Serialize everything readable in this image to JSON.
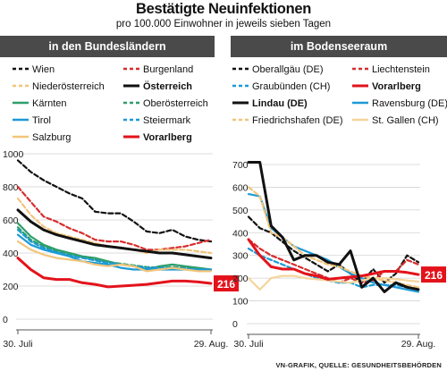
{
  "header": {
    "title": "Bestätigte Neuinfektionen",
    "subtitle": "pro 100.000 Einwohner in jeweils sieben Tagen"
  },
  "footer": {
    "source": "VN-GRAFIK, QUELLE: GESUNDHEITSBEHÖRDEN"
  },
  "chart_data": [
    {
      "type": "line",
      "title": "in den Bundesländern",
      "xlabel": "",
      "ylabel": "",
      "x_tick_labels": [
        "30. Juli",
        "29. Aug."
      ],
      "x": [
        0,
        2,
        4,
        6,
        8,
        10,
        12,
        14,
        16,
        18,
        20,
        22,
        24,
        26,
        28,
        30
      ],
      "ylim": [
        0,
        1000
      ],
      "y_ticks": [
        0,
        200,
        400,
        600,
        800,
        1000
      ],
      "grid": "horizontal",
      "legend_placement": "top",
      "end_label": {
        "text": "216",
        "series": "Vorarlberg",
        "color": "#e3131b"
      },
      "series": [
        {
          "name": "Wien",
          "color": "#111111",
          "style": "dashed",
          "bold": false,
          "values": [
            960,
            890,
            840,
            800,
            760,
            730,
            650,
            640,
            640,
            590,
            530,
            520,
            540,
            500,
            480,
            470
          ]
        },
        {
          "name": "Burgenland",
          "color": "#d62d2d",
          "style": "dashed",
          "bold": false,
          "values": [
            800,
            710,
            620,
            590,
            550,
            520,
            480,
            470,
            470,
            450,
            420,
            420,
            430,
            440,
            460,
            480
          ]
        },
        {
          "name": "Niederösterreich",
          "color": "#f2c57a",
          "style": "dashed",
          "bold": false,
          "values": [
            730,
            630,
            560,
            520,
            500,
            480,
            460,
            440,
            430,
            420,
            400,
            420,
            420,
            420,
            410,
            400
          ]
        },
        {
          "name": "Österreich",
          "color": "#111111",
          "style": "solid",
          "bold": true,
          "values": [
            660,
            590,
            540,
            510,
            490,
            470,
            450,
            440,
            430,
            420,
            410,
            400,
            400,
            390,
            380,
            370
          ]
        },
        {
          "name": "Kärnten",
          "color": "#2e9e6b",
          "style": "solid",
          "bold": false,
          "values": [
            580,
            500,
            450,
            420,
            400,
            380,
            370,
            350,
            330,
            320,
            300,
            320,
            330,
            320,
            310,
            300
          ]
        },
        {
          "name": "Oberösterreich",
          "color": "#2e9e6b",
          "style": "dashed",
          "bold": false,
          "values": [
            555,
            480,
            440,
            410,
            390,
            375,
            360,
            345,
            335,
            325,
            315,
            312,
            315,
            310,
            305,
            300
          ]
        },
        {
          "name": "Tirol",
          "color": "#1d9ad6",
          "style": "solid",
          "bold": false,
          "values": [
            510,
            450,
            420,
            400,
            380,
            350,
            340,
            330,
            310,
            300,
            300,
            300,
            300,
            300,
            300,
            300
          ]
        },
        {
          "name": "Steiermark",
          "color": "#1d9ad6",
          "style": "dashed",
          "bold": false,
          "values": [
            540,
            470,
            430,
            405,
            385,
            370,
            355,
            340,
            330,
            320,
            310,
            310,
            310,
            305,
            300,
            295
          ]
        },
        {
          "name": "Salzburg",
          "color": "#f2c57a",
          "style": "solid",
          "bold": false,
          "values": [
            470,
            420,
            390,
            370,
            360,
            350,
            330,
            320,
            330,
            320,
            290,
            300,
            310,
            300,
            290,
            290
          ]
        },
        {
          "name": "Vorarlberg",
          "color": "#e3131b",
          "style": "solid",
          "bold": true,
          "values": [
            370,
            300,
            250,
            240,
            240,
            220,
            210,
            195,
            200,
            205,
            210,
            220,
            230,
            230,
            225,
            216
          ]
        }
      ]
    },
    {
      "type": "line",
      "title": "im Bodenseeraum",
      "xlabel": "",
      "ylabel": "",
      "x_tick_labels": [
        "30. Juli",
        "29. Aug."
      ],
      "x": [
        0,
        2,
        4,
        6,
        8,
        10,
        12,
        14,
        16,
        18,
        20,
        22,
        24,
        26,
        28,
        30
      ],
      "ylim": [
        0,
        700
      ],
      "y_ticks": [
        0,
        100,
        200,
        300,
        400,
        500,
        600,
        700
      ],
      "grid": "horizontal",
      "legend_placement": "top",
      "end_label": {
        "text": "216",
        "series": "Vorarlberg",
        "color": "#e3131b"
      },
      "series": [
        {
          "name": "Oberallgäu (DE)",
          "color": "#111111",
          "style": "dashed",
          "bold": false,
          "values": [
            470,
            420,
            400,
            360,
            320,
            290,
            260,
            230,
            260,
            220,
            180,
            240,
            180,
            220,
            300,
            270
          ]
        },
        {
          "name": "Liechtenstein",
          "color": "#d62d2d",
          "style": "dashed",
          "bold": false,
          "values": [
            370,
            330,
            300,
            280,
            260,
            240,
            220,
            200,
            180,
            200,
            180,
            190,
            230,
            230,
            280,
            260
          ]
        },
        {
          "name": "Graubünden (CH)",
          "color": "#1d9ad6",
          "style": "dashed",
          "bold": false,
          "values": [
            330,
            300,
            280,
            260,
            240,
            220,
            200,
            190,
            180,
            180,
            160,
            170,
            170,
            170,
            160,
            150
          ]
        },
        {
          "name": "Vorarlberg",
          "color": "#e3131b",
          "style": "solid",
          "bold": true,
          "values": [
            370,
            300,
            250,
            240,
            240,
            220,
            210,
            195,
            200,
            205,
            210,
            220,
            230,
            230,
            225,
            216
          ]
        },
        {
          "name": "Lindau (DE)",
          "color": "#111111",
          "style": "solid",
          "bold": true,
          "values": [
            710,
            710,
            430,
            380,
            280,
            300,
            300,
            270,
            260,
            320,
            160,
            200,
            140,
            180,
            160,
            150
          ]
        },
        {
          "name": "Ravensburg (DE)",
          "color": "#1d9ad6",
          "style": "solid",
          "bold": false,
          "values": [
            570,
            560,
            420,
            380,
            340,
            320,
            300,
            280,
            250,
            220,
            200,
            180,
            170,
            160,
            150,
            140
          ]
        },
        {
          "name": "Friedrichshafen (DE)",
          "color": "#f2c57a",
          "style": "dashed",
          "bold": false,
          "values": [
            600,
            560,
            400,
            380,
            340,
            300,
            280,
            260,
            250,
            230,
            210,
            200,
            190,
            180,
            170,
            160
          ]
        },
        {
          "name": "St. Gallen (CH)",
          "color": "#f5d49a",
          "style": "solid",
          "bold": false,
          "values": [
            200,
            150,
            200,
            210,
            210,
            200,
            195,
            190,
            185,
            180,
            190,
            200,
            200,
            195,
            190,
            185
          ]
        }
      ]
    }
  ]
}
